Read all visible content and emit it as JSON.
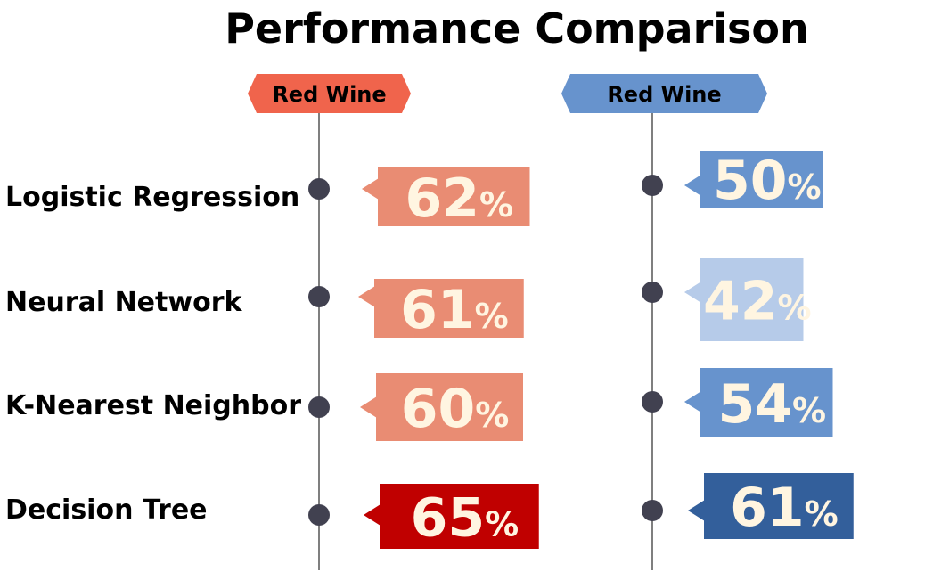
{
  "chart_data": {
    "type": "bar",
    "title": "Performance Comparison",
    "categories": [
      "Logistic Regression",
      "Neural Network",
      "K-Nearest Neighbor",
      "Decision Tree"
    ],
    "unit": "%",
    "series": [
      {
        "name": "Red Wine",
        "values": [
          62,
          61,
          60,
          65
        ],
        "colors": [
          "#e98c73",
          "#e98c73",
          "#e98c73",
          "#c00000"
        ],
        "header_color": "#f0644c"
      },
      {
        "name": "Red Wine",
        "values": [
          50,
          42,
          54,
          61
        ],
        "colors": [
          "#6793cd",
          "#b6cbe9",
          "#6793cd",
          "#335f9b"
        ],
        "header_color": "#6793cd"
      }
    ],
    "value_text_color": "#fff5e1",
    "dot_color": "#414150",
    "axis_color": "#555555"
  }
}
